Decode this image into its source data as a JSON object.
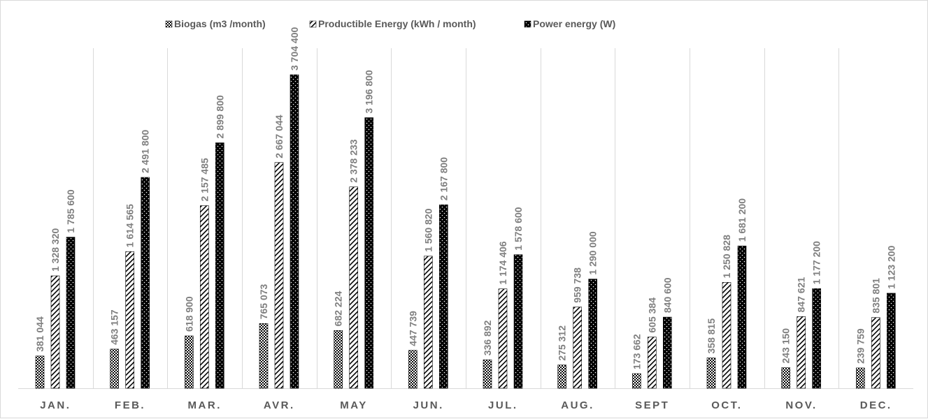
{
  "chart_data": {
    "type": "bar",
    "title": "",
    "xlabel": "",
    "ylabel": "",
    "categories": [
      "JAN.",
      "FEB.",
      "MAR.",
      "AVR.",
      "MAY",
      "JUN.",
      "JUL.",
      "AUG.",
      "SEPT",
      "OCT.",
      "NOV.",
      "DEC."
    ],
    "series": [
      {
        "name": "Biogas (m3 /month)",
        "pattern": "crosshatch",
        "values": [
          381044,
          463157,
          618900,
          765073,
          682224,
          447739,
          336892,
          275312,
          173662,
          358815,
          243150,
          239759
        ],
        "labels": [
          "381 044",
          "463 157",
          "618 900",
          "765 073",
          "682 224",
          "447 739",
          "336 892",
          "275 312",
          "173 662",
          "358 815",
          "243 150",
          "239 759"
        ]
      },
      {
        "name": "Productible Energy (kWh / month)",
        "pattern": "diagonal",
        "values": [
          1328320,
          1614565,
          2157485,
          2667044,
          2378233,
          1560820,
          1174406,
          959738,
          605384,
          1250828,
          847621,
          835801
        ],
        "labels": [
          "1 328 320",
          "1 614 565",
          "2 157 485",
          "2 667 044",
          "2 378 233",
          "1 560 820",
          "1 174 406",
          "959 738",
          "605 384",
          "1 250 828",
          "847 621",
          "835 801"
        ]
      },
      {
        "name": "Power energy (W)",
        "pattern": "dots",
        "values": [
          1785600,
          2491800,
          2899800,
          3704400,
          3196800,
          2167800,
          1578600,
          1290000,
          840600,
          1681200,
          1177200,
          1123200
        ],
        "labels": [
          "1 785 600",
          "2 491 800",
          "2 899 800",
          "3 704 400",
          "3 196 800",
          "2 167 800",
          "1 578 600",
          "1 290 000",
          "840 600",
          "1 681 200",
          "1 177 200",
          "1 123 200"
        ]
      }
    ],
    "ylim": [
      0,
      4000000
    ],
    "grid": "vertical-category-separators",
    "legend": "top-center",
    "colors": {
      "bar": "#000000",
      "grid": "#d9d9d9",
      "axis_text": "#595959",
      "label_text": "#7f7f7f"
    }
  }
}
